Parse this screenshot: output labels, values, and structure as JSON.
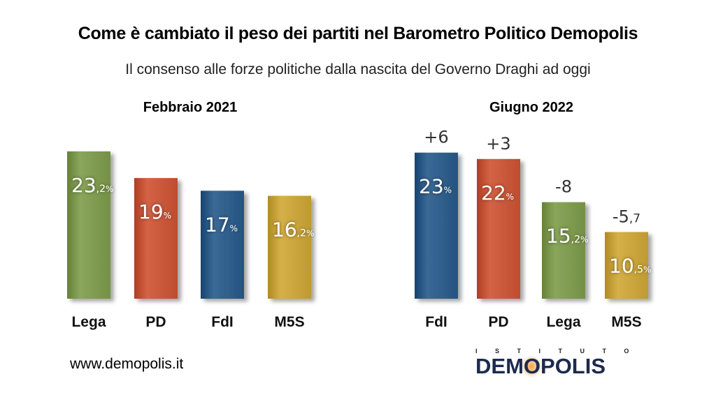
{
  "title": "Come è cambiato il peso dei partiti nel Barometro Politico Demopolis",
  "subtitle": "Il consenso alle forze politiche dalla nascita del Governo Draghi ad oggi",
  "website": "www.demopolis.it",
  "logo": {
    "top": "ISTITUTO",
    "main_before": "DEM",
    "main_o": "O",
    "main_after": "POLIS"
  },
  "colors": {
    "lega": "#7e9a4f",
    "pd": "#c8573a",
    "fdi": "#2f5d8a",
    "m5s": "#c9a43c"
  },
  "chart_data": [
    {
      "type": "bar",
      "title": "Febbraio 2021",
      "categories": [
        "Lega",
        "PD",
        "FdI",
        "M5S"
      ],
      "values": [
        23.2,
        19,
        17,
        16.2
      ],
      "labels": [
        {
          "int": "23",
          "dec": ",2",
          "unit": "%"
        },
        {
          "int": "19",
          "dec": "",
          "unit": "%"
        },
        {
          "int": "17",
          "dec": "",
          "unit": "%"
        },
        {
          "int": "16",
          "dec": ",2",
          "unit": "%"
        }
      ],
      "colors": [
        "#7e9a4f",
        "#c8573a",
        "#2f5d8a",
        "#c9a43c"
      ]
    },
    {
      "type": "bar",
      "title": "Giugno 2022",
      "categories": [
        "FdI",
        "PD",
        "Lega",
        "M5S"
      ],
      "values": [
        23,
        22,
        15.2,
        10.5
      ],
      "labels": [
        {
          "int": "23",
          "dec": "",
          "unit": "%"
        },
        {
          "int": "22",
          "dec": "",
          "unit": "%"
        },
        {
          "int": "15",
          "dec": ",2",
          "unit": "%"
        },
        {
          "int": "10",
          "dec": ",5",
          "unit": "%"
        }
      ],
      "changes": [
        {
          "main": "+6",
          "dec": ""
        },
        {
          "main": "+3",
          "dec": ""
        },
        {
          "main": "-8",
          "dec": ""
        },
        {
          "main": "-5",
          "dec": ",7"
        }
      ],
      "colors": [
        "#2f5d8a",
        "#c8573a",
        "#7e9a4f",
        "#c9a43c"
      ]
    }
  ]
}
